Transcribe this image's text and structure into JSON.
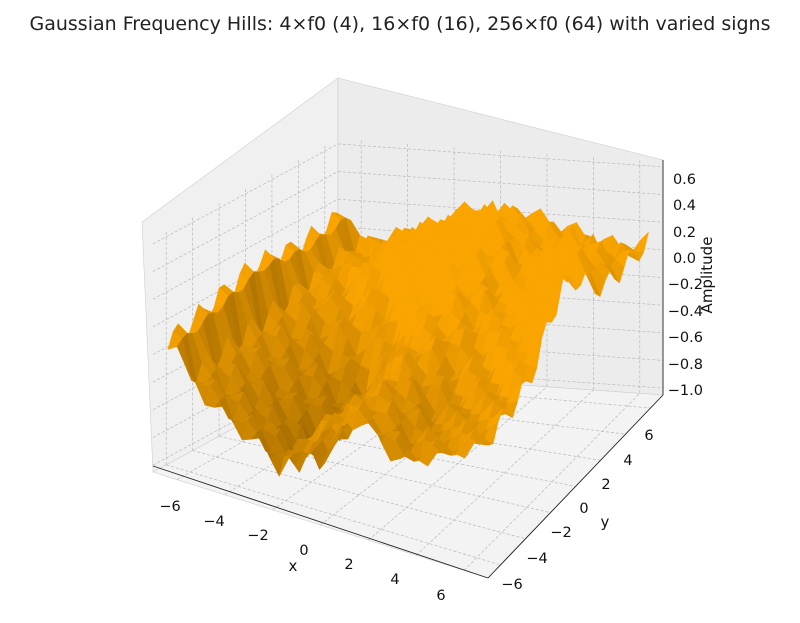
{
  "chart_data": {
    "type": "surface3d",
    "title": "Gaussian Frequency Hills: 4×f0 (4), 16×f0 (16), 256×f0 (64) with varied signs",
    "xlabel": "x",
    "ylabel": "y",
    "zlabel": "Amplitude",
    "xlim": [
      -7,
      7
    ],
    "ylim": [
      -7,
      7
    ],
    "zlim": [
      -1.05,
      0.65
    ],
    "xticks": [
      "−6",
      "−4",
      "−2",
      "0",
      "2",
      "4",
      "6"
    ],
    "yticks": [
      "−6",
      "−4",
      "−2",
      "0",
      "2",
      "4",
      "6"
    ],
    "zticks": [
      "0.6",
      "0.4",
      "0.2",
      "0.0",
      "−0.2",
      "−0.4",
      "−0.6",
      "−0.8",
      "−1.0"
    ],
    "grid": true,
    "surface_color": "#d98f00",
    "pane_color": "#f0f0f0",
    "grid_color": "#b8b8b8",
    "surface_profile": {
      "rows": [
        {
          "y": -6,
          "z": [
            -0.3,
            -0.42,
            -0.55,
            -0.62,
            -0.78,
            -0.55,
            -0.35,
            -0.25,
            -0.3,
            -0.45,
            -0.38,
            -0.3,
            -0.2,
            -0.15,
            -0.1
          ]
        },
        {
          "y": -3,
          "z": [
            -0.25,
            -0.4,
            -0.6,
            -0.75,
            -0.95,
            -0.7,
            -0.4,
            -0.2,
            -0.25,
            -0.4,
            -0.3,
            -0.2,
            -0.1,
            -0.05,
            0.0
          ]
        },
        {
          "y": 0,
          "z": [
            -0.2,
            -0.3,
            -0.45,
            -0.55,
            -0.65,
            -0.45,
            -0.2,
            0.05,
            0.1,
            0.0,
            0.05,
            0.15,
            0.35,
            0.55,
            0.1
          ]
        },
        {
          "y": 3,
          "z": [
            -0.15,
            -0.1,
            -0.05,
            0.1,
            0.25,
            0.35,
            0.45,
            0.55,
            0.4,
            0.15,
            0.25,
            0.45,
            0.3,
            0.1,
            0.05
          ]
        },
        {
          "y": 6,
          "z": [
            -0.1,
            -0.05,
            0.0,
            0.05,
            0.1,
            0.15,
            0.2,
            0.25,
            0.2,
            0.15,
            0.1,
            0.05,
            0.05,
            0.1,
            0.1
          ]
        }
      ],
      "x": [
        -6,
        -5,
        -4,
        -3,
        -2,
        -1,
        0,
        1,
        2,
        3,
        4,
        5,
        6,
        6.5,
        7
      ]
    }
  }
}
